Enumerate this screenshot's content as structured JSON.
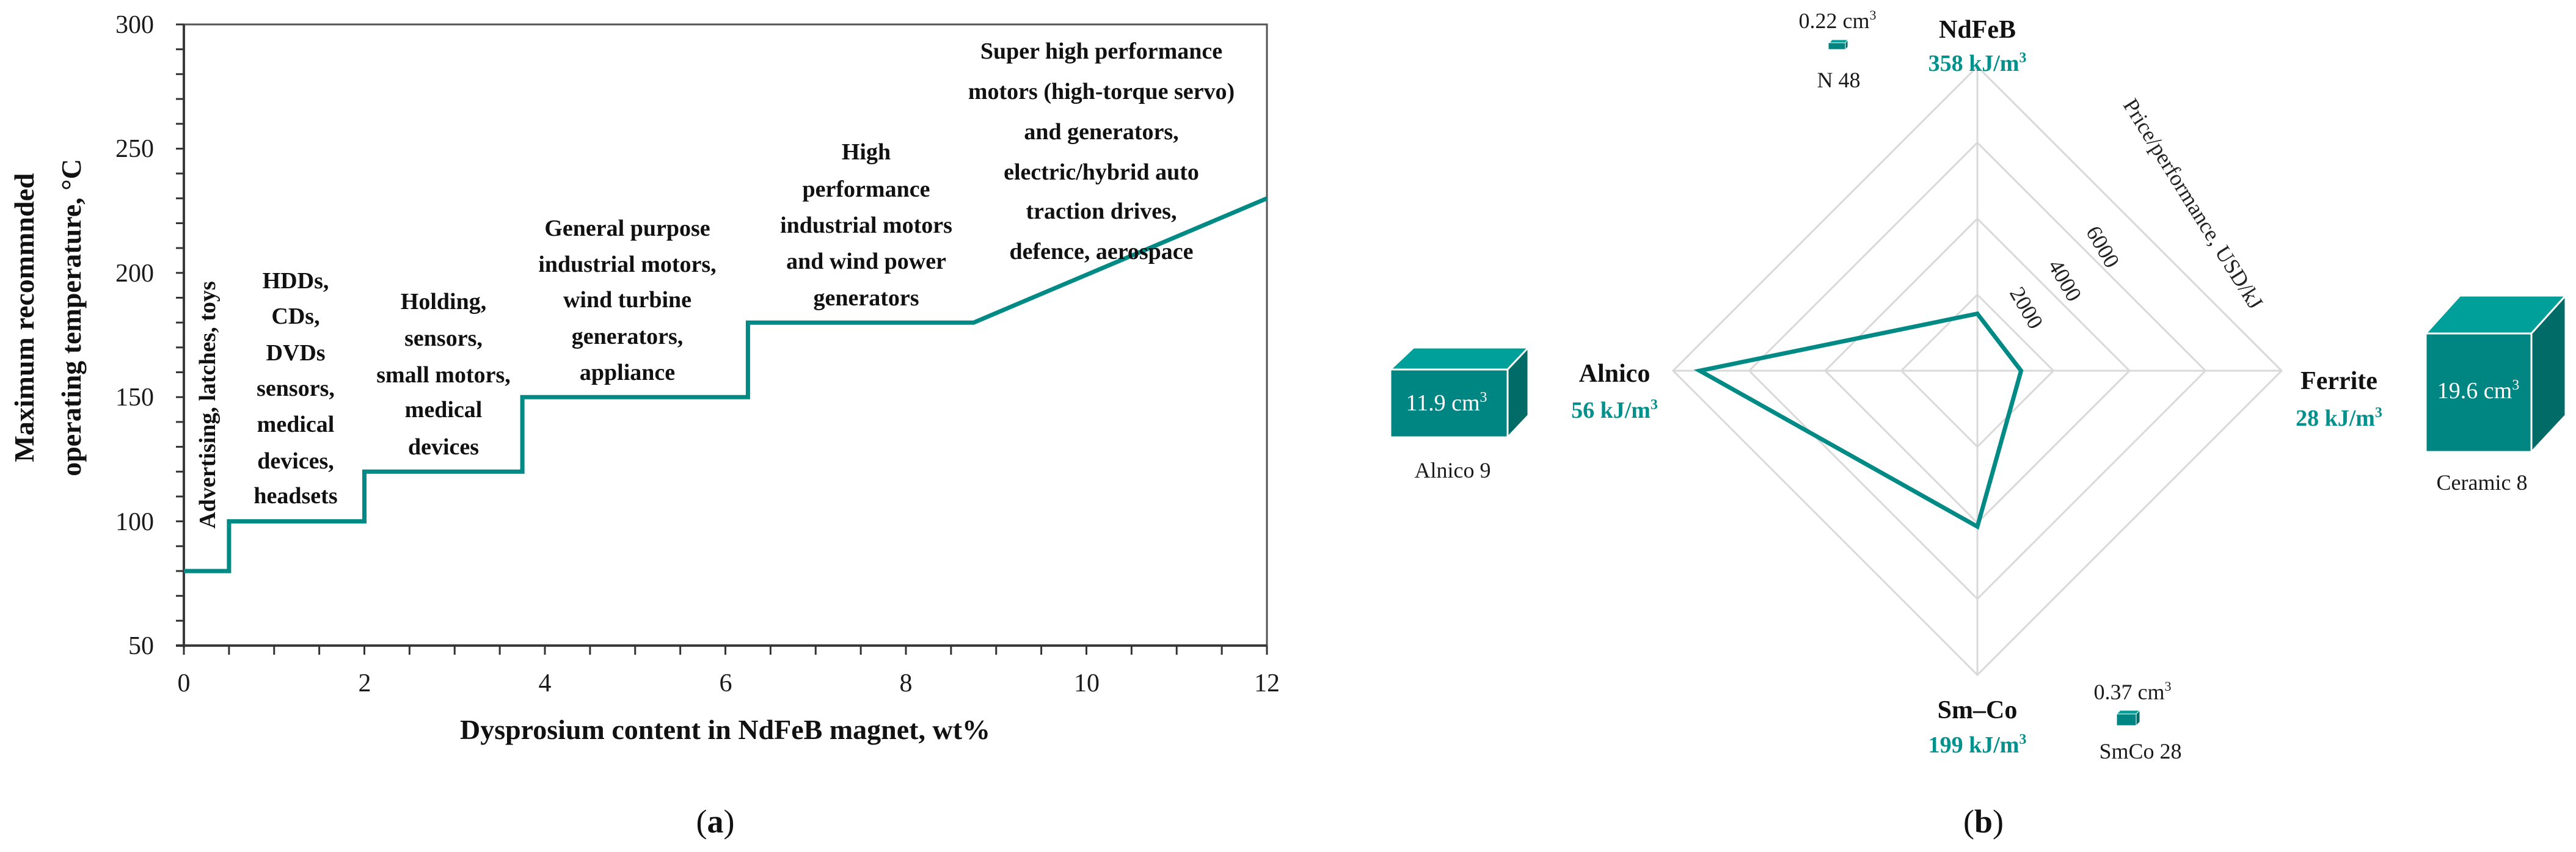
{
  "figure": {
    "panel_a_caption": "a",
    "panel_b_caption": "b"
  },
  "colors": {
    "series": "#008a86",
    "cube_front": "#008682",
    "cube_top": "#00a09a",
    "cube_side": "#006b67",
    "value_text": "#00918c",
    "grid": "#d9d9d9"
  },
  "chart_data": [
    {
      "type": "line",
      "panel": "a",
      "title": "",
      "xlabel": "Dysprosium content in NdFeB magnet, wt%",
      "ylabel": "Maximum recommnded operating temperature, °C",
      "ylabel_lines": [
        "Maximum recommnded",
        "operating temperature, °C"
      ],
      "xlim": [
        0,
        12
      ],
      "ylim": [
        50,
        300
      ],
      "xticks": [
        0,
        2,
        4,
        6,
        8,
        10,
        12
      ],
      "yticks": [
        50,
        100,
        150,
        200,
        250,
        300
      ],
      "x_minor_step": 0.5,
      "y_minor_step": 10,
      "grid": false,
      "legend": null,
      "series": [
        {
          "name": "Max operating temperature",
          "x": [
            0,
            0.5,
            0.5,
            2,
            2,
            3.75,
            3.75,
            6.25,
            6.25,
            8.75,
            12
          ],
          "y": [
            80,
            80,
            100,
            100,
            120,
            120,
            150,
            150,
            180,
            180,
            230
          ]
        }
      ],
      "annotations": [
        {
          "id": "advertising",
          "orientation": "vertical",
          "lines": [
            "Advertising, latches, toys"
          ]
        },
        {
          "id": "hdds",
          "lines": [
            "HDDs,",
            "CDs,",
            "DVDs",
            "sensors,",
            "medical",
            "devices,",
            "headsets"
          ]
        },
        {
          "id": "holding",
          "lines": [
            "Holding,",
            "sensors,",
            "small motors,",
            "medical",
            "devices"
          ]
        },
        {
          "id": "general",
          "lines": [
            "General purpose",
            "industrial motors,",
            "wind turbine",
            "generators,",
            "appliance"
          ]
        },
        {
          "id": "high",
          "lines": [
            "High",
            "performance",
            "industrial motors",
            "and wind power",
            "generators"
          ]
        },
        {
          "id": "super",
          "lines": [
            "Super high performance",
            "motors (high-torque servo)",
            "and generators,",
            "electric/hybrid auto",
            "traction drives,",
            "defence, aerospace"
          ]
        }
      ]
    },
    {
      "type": "radar",
      "panel": "b",
      "title": "",
      "radial_axis_label": "Price/performance, USD/kJ",
      "radial_ticks": [
        2000,
        4000,
        6000,
        8000
      ],
      "radial_tick_labels_shown": [
        "2000",
        "4000",
        "6000"
      ],
      "rlim": [
        0,
        8000
      ],
      "grid": true,
      "categories": [
        "NdFeB",
        "Ferrite",
        "Sm–Co",
        "Alnico"
      ],
      "series": [
        {
          "name": "Price/performance",
          "values": [
            1500,
            1150,
            4100,
            7300
          ]
        }
      ],
      "axis_annotations": [
        {
          "category": "NdFeB",
          "energy_product": "358 kJ/m³",
          "grade": "N 48",
          "volume": "0.22 cm³"
        },
        {
          "category": "Ferrite",
          "energy_product": "28 kJ/m³",
          "grade": "Ceramic 8",
          "volume": "19.6 cm³"
        },
        {
          "category": "Sm–Co",
          "energy_product": "199 kJ/m³",
          "grade": "SmCo 28",
          "volume": "0.37 cm³"
        },
        {
          "category": "Alnico",
          "energy_product": "56 kJ/m³",
          "grade": "Alnico 9",
          "volume": "11.9 cm³"
        }
      ]
    }
  ],
  "panel_a": {
    "ylabel_line1": "Maximum recommnded",
    "ylabel_line2": "operating temperature, °C",
    "xlabel": "Dysprosium content in NdFeB magnet, wt%",
    "yticks": [
      "300",
      "250",
      "200",
      "150",
      "100",
      "50"
    ],
    "xticks": [
      "0",
      "2",
      "4",
      "6",
      "8",
      "10",
      "12"
    ],
    "ann_advertising": "Advertising, latches, toys",
    "ann_hdds": [
      "HDDs,",
      "CDs,",
      "DVDs",
      "sensors,",
      "medical",
      "devices,",
      "headsets"
    ],
    "ann_holding": [
      "Holding,",
      "sensors,",
      "small motors,",
      "medical",
      "devices"
    ],
    "ann_general": [
      "General purpose",
      "industrial motors,",
      "wind turbine",
      "generators,",
      "appliance"
    ],
    "ann_high": [
      "High",
      "performance",
      "industrial motors",
      "and wind power",
      "generators"
    ],
    "ann_super": [
      "Super high performance",
      "motors (high-torque servo)",
      "and generators,",
      "electric/hybrid auto",
      "traction drives,",
      "defence, aerospace"
    ]
  },
  "panel_b": {
    "radial_axis_label": "Price/performance, USD/kJ",
    "radial_ticks": [
      "2000",
      "4000",
      "6000"
    ],
    "ndfeb": {
      "name": "NdFeB",
      "value": "358 kJ/m",
      "grade": "N 48",
      "volume": "0.22 cm"
    },
    "ferrite": {
      "name": "Ferrite",
      "value": "28 kJ/m",
      "grade": "Ceramic 8",
      "volume": "19.6 cm"
    },
    "smco": {
      "name": "Sm–Co",
      "value": "199 kJ/m",
      "grade": "SmCo 28",
      "volume": "0.37 cm"
    },
    "alnico": {
      "name": "Alnico",
      "value": "56 kJ/m",
      "grade": "Alnico 9",
      "volume": "11.9 cm"
    },
    "superscript": "3"
  }
}
